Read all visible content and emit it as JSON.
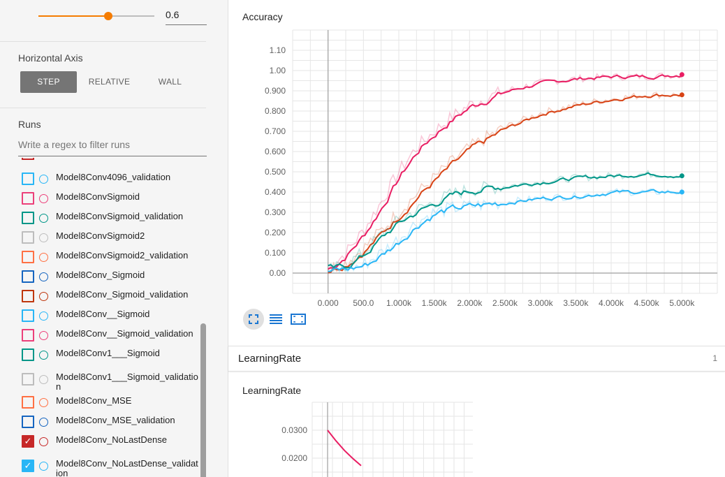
{
  "sidebar": {
    "smoothing": {
      "value": "0.6",
      "fraction": 0.6
    },
    "horizontal_axis": {
      "title": "Horizontal Axis",
      "options": [
        {
          "label": "STEP",
          "active": true
        },
        {
          "label": "RELATIVE",
          "active": false
        },
        {
          "label": "WALL",
          "active": false
        }
      ]
    },
    "runs": {
      "title": "Runs",
      "filter_placeholder": "Write a regex to filter runs",
      "items": [
        {
          "label": "Model8Conv4096_validation",
          "color": "#29b6f6",
          "checked": false
        },
        {
          "label": "Model8ConvSigmoid",
          "color": "#ec407a",
          "checked": false
        },
        {
          "label": "Model8ConvSigmoid_validation",
          "color": "#009688",
          "checked": false
        },
        {
          "label": "Model8ConvSigmoid2",
          "color": "#bdbdbd",
          "checked": false
        },
        {
          "label": "Model8ConvSigmoid2_validation",
          "color": "#ff7043",
          "checked": false
        },
        {
          "label": "Model8Conv_Sigmoid",
          "color": "#1565c0",
          "checked": false
        },
        {
          "label": "Model8Conv_Sigmoid_validation",
          "color": "#bf360c",
          "checked": false
        },
        {
          "label": "Model8Conv__Sigmoid",
          "color": "#29b6f6",
          "checked": false
        },
        {
          "label": "Model8Conv__Sigmoid_validation",
          "color": "#ec407a",
          "checked": false
        },
        {
          "label": "Model8Conv1___Sigmoid",
          "color": "#009688",
          "checked": false
        },
        {
          "label": "Model8Conv1___Sigmoid_validation",
          "color": "#bdbdbd",
          "checked": false
        },
        {
          "label": "Model8Conv_MSE",
          "color": "#ff7043",
          "checked": false
        },
        {
          "label": "Model8Conv_MSE_validation",
          "color": "#1565c0",
          "checked": false
        },
        {
          "label": "Model8Conv_NoLastDense",
          "color": "#c62828",
          "checked": true
        },
        {
          "label": "Model8Conv_NoLastDense_validation",
          "color": "#29b6f6",
          "checked": true
        }
      ]
    }
  },
  "main": {
    "accuracy_chart": {
      "title": "Accuracy",
      "chart_data": {
        "type": "line",
        "title": "Accuracy",
        "xlabel": "",
        "ylabel": "",
        "xlim": [
          -500,
          5500
        ],
        "ylim": [
          -0.1,
          1.2
        ],
        "x_ticks": [
          "0.000",
          "500.0",
          "1.000k",
          "1.500k",
          "2.000k",
          "2.500k",
          "3.000k",
          "3.500k",
          "4.000k",
          "4.500k",
          "5.000k"
        ],
        "y_ticks": [
          "0.00",
          "0.100",
          "0.200",
          "0.300",
          "0.400",
          "0.500",
          "0.600",
          "0.700",
          "0.800",
          "0.900",
          "1.00",
          "1.10"
        ],
        "grid": true,
        "series": [
          {
            "color": "#e91e63",
            "x": [
              0,
              250,
              500,
              750,
              1000,
              1250,
              1500,
              1750,
              2000,
              2500,
              3000,
              3500,
              4000,
              4500,
              5000
            ],
            "y": [
              0.02,
              0.1,
              0.21,
              0.35,
              0.5,
              0.62,
              0.7,
              0.77,
              0.83,
              0.9,
              0.94,
              0.96,
              0.97,
              0.97,
              0.98
            ]
          },
          {
            "color": "#d84315",
            "x": [
              0,
              250,
              500,
              750,
              1000,
              1250,
              1500,
              1750,
              2000,
              2500,
              3000,
              3500,
              4000,
              4500,
              5000
            ],
            "y": [
              0.02,
              0.05,
              0.12,
              0.21,
              0.3,
              0.39,
              0.47,
              0.55,
              0.62,
              0.72,
              0.79,
              0.83,
              0.86,
              0.88,
              0.88
            ]
          },
          {
            "color": "#009688",
            "x": [
              0,
              250,
              500,
              750,
              1000,
              1250,
              1500,
              1750,
              2000,
              2500,
              3000,
              3500,
              4000,
              4500,
              5000
            ],
            "y": [
              0.01,
              0.04,
              0.1,
              0.19,
              0.26,
              0.31,
              0.35,
              0.39,
              0.41,
              0.43,
              0.45,
              0.47,
              0.48,
              0.49,
              0.48
            ]
          },
          {
            "color": "#29b6f6",
            "x": [
              0,
              250,
              500,
              750,
              1000,
              1250,
              1500,
              1750,
              2000,
              2500,
              3000,
              3500,
              4000,
              4500,
              5000
            ],
            "y": [
              0.01,
              0.02,
              0.04,
              0.1,
              0.17,
              0.25,
              0.3,
              0.32,
              0.33,
              0.35,
              0.37,
              0.38,
              0.4,
              0.4,
              0.4
            ]
          }
        ]
      }
    },
    "group": {
      "title": "LearningRate",
      "count": "1"
    },
    "lr_chart": {
      "title": "LearningRate",
      "chart_data": {
        "type": "line",
        "title": "LearningRate",
        "xlabel": "",
        "ylabel": "",
        "y_ticks": [
          "0.0300",
          "0.0200"
        ],
        "y_tick_values": [
          0.03,
          0.02
        ],
        "grid": true,
        "series": [
          {
            "color": "#e91e63",
            "x": [
              0,
              0.1,
              0.2,
              0.3,
              0.4
            ],
            "y": [
              0.03,
              0.0262,
              0.0228,
              0.0199,
              0.0173
            ]
          }
        ]
      }
    }
  }
}
